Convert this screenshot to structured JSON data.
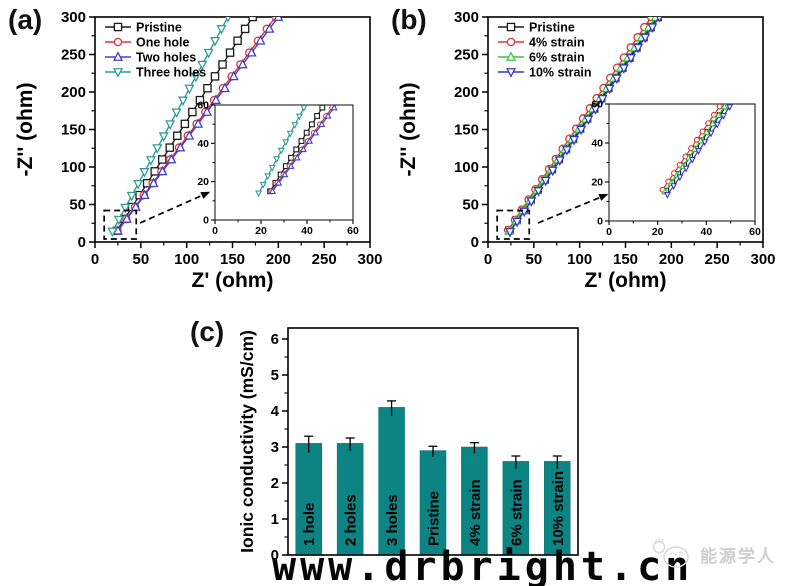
{
  "watermarks": {
    "bottom": "www.drbright.cn",
    "right": "能源学人"
  },
  "panels": {
    "a": {
      "letter": "(a)"
    },
    "b": {
      "letter": "(b)"
    },
    "c": {
      "letter": "(c)"
    }
  },
  "chart_data": [
    {
      "id": "a",
      "type": "line",
      "kind": "nyquist",
      "xlabel": "Z' (ohm)",
      "ylabel": "-Z'' (ohm)",
      "xlim": [
        0,
        300
      ],
      "ylim": [
        0,
        300
      ],
      "xticks": [
        0,
        50,
        100,
        150,
        200,
        250,
        300
      ],
      "yticks": [
        0,
        50,
        100,
        150,
        200,
        250,
        300
      ],
      "legend_position": "top-left",
      "series": [
        {
          "name": "Pristine",
          "marker": "square",
          "color": "#1a1a1a",
          "from": [
            24,
            15
          ],
          "to": [
            172,
            300
          ],
          "markers": 19
        },
        {
          "name": "One hole",
          "marker": "circle",
          "color": "#e03333",
          "from": [
            24.5,
            15
          ],
          "to": [
            197,
            300
          ],
          "markers": 19
        },
        {
          "name": "Two holes",
          "marker": "triangle-up",
          "color": "#4340c9",
          "from": [
            25,
            15
          ],
          "to": [
            200,
            300
          ],
          "markers": 19
        },
        {
          "name": "Three holes",
          "marker": "triangle-down",
          "color": "#2f9e93",
          "from": [
            19,
            14
          ],
          "to": [
            145,
            300
          ],
          "markers": 19
        }
      ],
      "inset": {
        "xlim": [
          0,
          60
        ],
        "ylim": [
          0,
          60
        ],
        "xticks": [
          0,
          20,
          40,
          60
        ],
        "yticks": [
          0,
          20,
          40,
          60
        ]
      },
      "zoom_box": {
        "x": [
          10,
          45
        ],
        "y": [
          4,
          42
        ]
      }
    },
    {
      "id": "b",
      "type": "line",
      "kind": "nyquist",
      "xlabel": "Z' (ohm)",
      "ylabel": "-Z'' (ohm)",
      "xlim": [
        0,
        300
      ],
      "ylim": [
        0,
        300
      ],
      "xticks": [
        0,
        50,
        100,
        150,
        200,
        250,
        300
      ],
      "yticks": [
        0,
        50,
        100,
        150,
        200,
        250,
        300
      ],
      "legend_position": "top-left",
      "series": [
        {
          "name": "Pristine",
          "marker": "square",
          "color": "#1a1a1a",
          "from": [
            23.5,
            15.5
          ],
          "to": [
            185,
            300
          ],
          "markers": 22
        },
        {
          "name": "4% strain",
          "marker": "circle",
          "color": "#e03333",
          "from": [
            22,
            16
          ],
          "to": [
            178,
            300
          ],
          "markers": 22
        },
        {
          "name": "6% strain",
          "marker": "triangle-up",
          "color": "#3cc43c",
          "from": [
            23,
            15
          ],
          "to": [
            183,
            300
          ],
          "markers": 22
        },
        {
          "name": "10% strain",
          "marker": "triangle-down",
          "color": "#3538c8",
          "from": [
            24,
            13.5
          ],
          "to": [
            187,
            300
          ],
          "markers": 22
        }
      ],
      "inset": {
        "xlim": [
          0,
          60
        ],
        "ylim": [
          0,
          60
        ],
        "xticks": [
          0,
          20,
          40,
          60
        ],
        "yticks": [
          0,
          20,
          40,
          60
        ]
      },
      "zoom_box": {
        "x": [
          10,
          45
        ],
        "y": [
          4,
          42
        ]
      }
    },
    {
      "id": "c",
      "type": "bar",
      "ylabel": "Ionic conductivity (mS/cm)",
      "ylim": [
        0,
        6
      ],
      "yticks": [
        0,
        1,
        2,
        3,
        4,
        5,
        6
      ],
      "bar_color": "#0d8484",
      "label_color": "#ffffff",
      "categories": [
        "1 hole",
        "2 holes",
        "3 holes",
        "Pristine",
        "4% strain",
        "6% strain",
        "10% strain"
      ],
      "values": [
        3.1,
        3.1,
        4.1,
        2.9,
        3.0,
        2.6,
        2.6
      ],
      "errors": [
        0.2,
        0.15,
        0.18,
        0.12,
        0.12,
        0.15,
        0.15
      ]
    }
  ]
}
